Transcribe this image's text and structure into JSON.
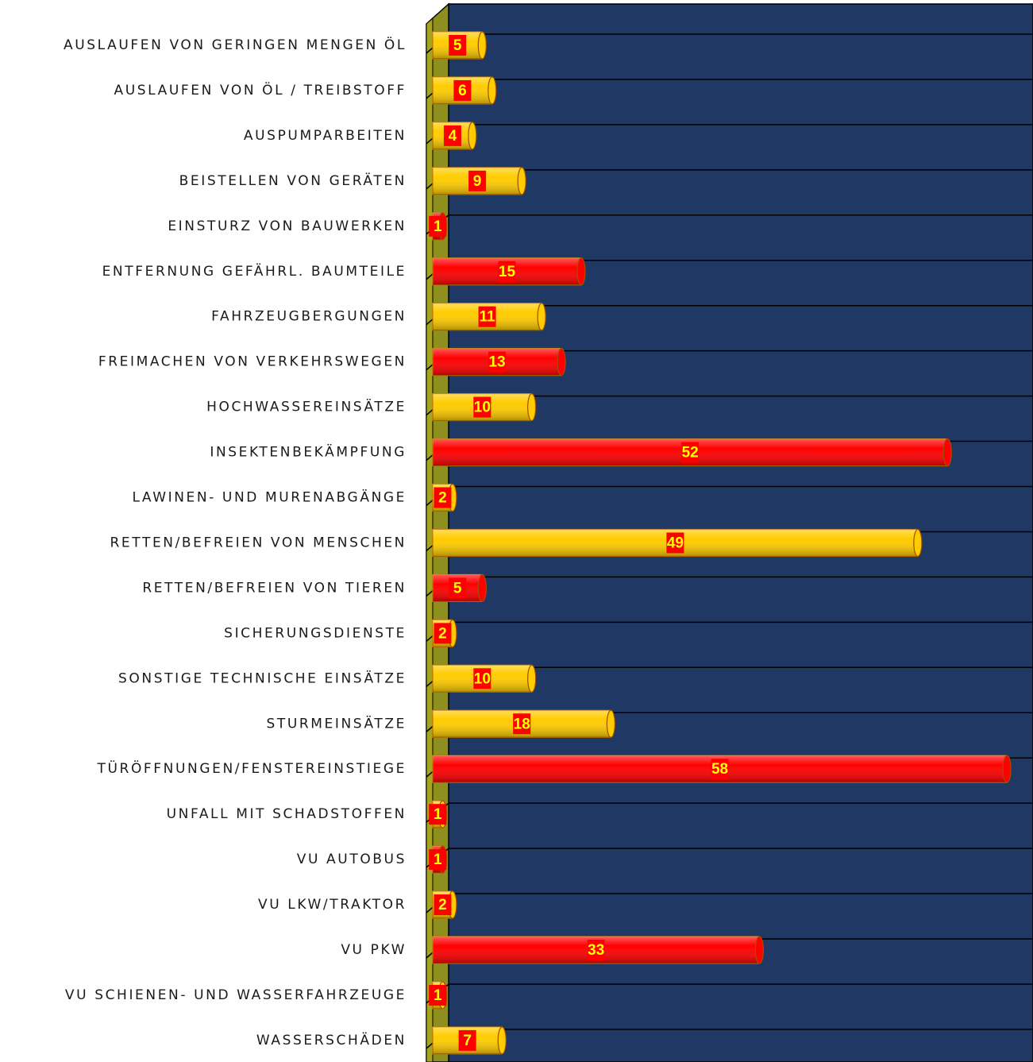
{
  "chart_data": {
    "type": "bar",
    "orientation": "horizontal",
    "categories": [
      "AUSLAUFEN VON GERINGEN MENGEN ÖL",
      "AUSLAUFEN VON ÖL / TREIBSTOFF",
      "AUSPUMPARBEITEN",
      "BEISTELLEN VON GERÄTEN",
      "EINSTURZ VON BAUWERKEN",
      "ENTFERNUNG GEFÄHRL. BAUMTEILE",
      "FAHRZEUGBERGUNGEN",
      "FREIMACHEN VON VERKEHRSWEGEN",
      "HOCHWASSEREINSÄTZE",
      "INSEKTENBEKÄMPFUNG",
      "LAWINEN- UND MURENABGÄNGE",
      "RETTEN/BEFREIEN VON MENSCHEN",
      "RETTEN/BEFREIEN VON TIEREN",
      "SICHERUNGSDIENSTE",
      "SONSTIGE TECHNISCHE EINSÄTZE",
      "STURMEINSÄTZE",
      "TÜRÖFFNUNGEN/FENSTEREINSTIEGE",
      "UNFALL MIT SCHADSTOFFEN",
      "VU AUTOBUS",
      "VU LKW/TRAKTOR",
      "VU PKW",
      "VU SCHIENEN- UND WASSERFAHRZEUGE",
      "WASSERSCHÄDEN"
    ],
    "values": [
      5,
      6,
      4,
      9,
      1,
      15,
      11,
      13,
      10,
      52,
      2,
      49,
      5,
      2,
      10,
      18,
      58,
      1,
      1,
      2,
      33,
      1,
      7
    ],
    "colors": [
      "#ffcc00",
      "#ffcc00",
      "#ffcc00",
      "#ffcc00",
      "#ff0000",
      "#ff0000",
      "#ffcc00",
      "#ff0000",
      "#ffcc00",
      "#ff0000",
      "#ffcc00",
      "#ffcc00",
      "#ff0000",
      "#ffcc00",
      "#ffcc00",
      "#ffcc00",
      "#ff0000",
      "#ffcc00",
      "#ff0000",
      "#ffcc00",
      "#ff0000",
      "#ffcc00",
      "#ffcc00"
    ],
    "xlim": [
      0,
      60
    ],
    "grid": true
  }
}
